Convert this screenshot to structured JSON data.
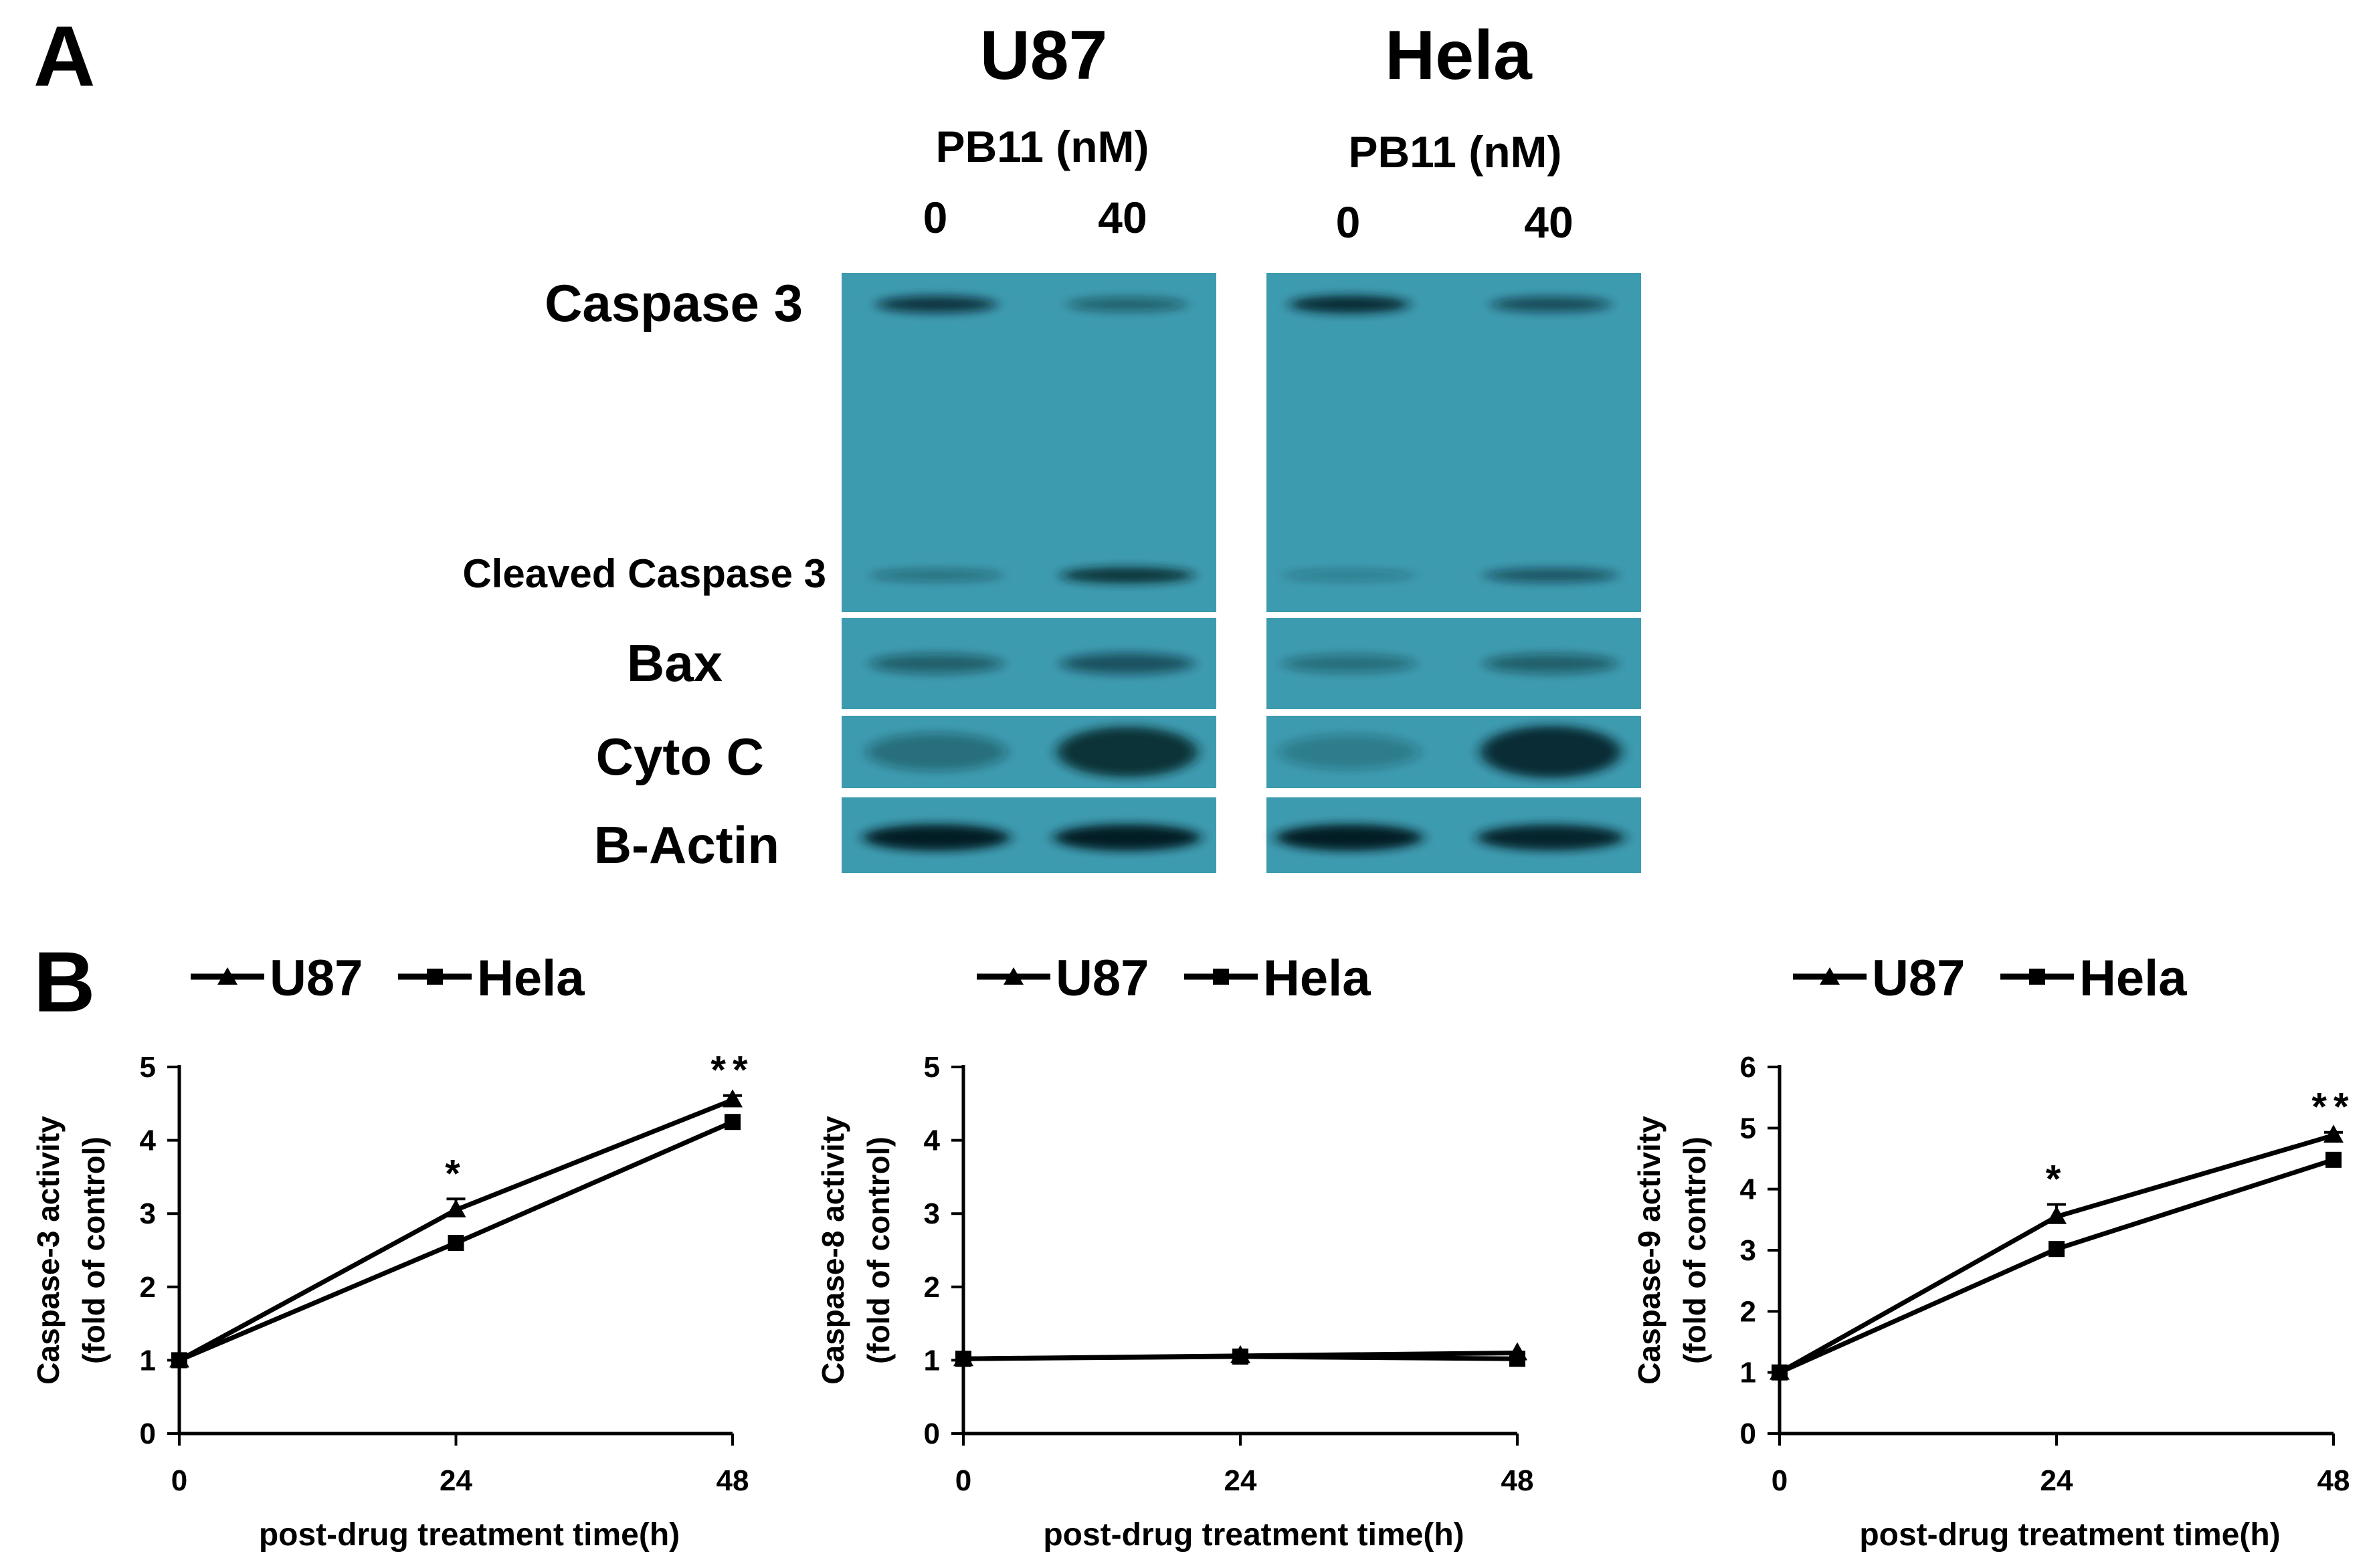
{
  "panel_a": {
    "letter": "A",
    "groups": [
      {
        "cell_line": "U87",
        "treatment_label": "PB11 (nM)",
        "lanes": [
          "0",
          "40"
        ]
      },
      {
        "cell_line": "Hela",
        "treatment_label": "PB11 (nM)",
        "lanes": [
          "0",
          "40"
        ]
      }
    ],
    "blot_labels": {
      "caspase3": "Caspase 3",
      "cleaved": "Cleaved Caspase 3",
      "bax": "Bax",
      "cytoc": "Cyto C",
      "actin": "B-Actin"
    },
    "band_intensity": {
      "U87": {
        "caspase3": [
          0.75,
          0.45
        ],
        "cleaved": [
          0.35,
          0.8
        ],
        "bax": [
          0.45,
          0.55
        ],
        "cytoc": [
          0.35,
          0.8
        ],
        "actin": [
          0.95,
          0.95
        ]
      },
      "Hela": {
        "caspase3": [
          0.85,
          0.6
        ],
        "cleaved": [
          0.25,
          0.55
        ],
        "bax": [
          0.35,
          0.45
        ],
        "cytoc": [
          0.25,
          0.85
        ],
        "actin": [
          0.95,
          0.9
        ]
      }
    },
    "membrane_color": "#3d9bb0"
  },
  "panel_b": {
    "letter": "B",
    "legend": [
      "U87",
      "Hela"
    ],
    "xlabel": "post-drug treatment time(h)"
  },
  "chart_data": [
    {
      "type": "line",
      "x": [
        0,
        24,
        48
      ],
      "xlabel": "post-drug treatment time(h)",
      "ylabel": [
        "Caspase-3 activity",
        "(fold of control)"
      ],
      "ylim": [
        0,
        5
      ],
      "yticks": [
        0,
        1,
        2,
        3,
        4,
        5
      ],
      "series": [
        {
          "name": "U87",
          "marker": "triangle",
          "values": [
            1.0,
            3.05,
            4.55
          ],
          "error": [
            0,
            0.15,
            0.06
          ]
        },
        {
          "name": "Hela",
          "marker": "square",
          "values": [
            1.0,
            2.6,
            4.25
          ],
          "error": [
            0,
            0,
            0
          ]
        }
      ],
      "annotations": [
        {
          "x": 24,
          "text": "*"
        },
        {
          "x": 48,
          "text": "**"
        }
      ]
    },
    {
      "type": "line",
      "x": [
        0,
        24,
        48
      ],
      "xlabel": "post-drug treatment time(h)",
      "ylabel": [
        "Caspase-8 activity",
        "(fold of control)"
      ],
      "ylim": [
        0,
        5
      ],
      "yticks": [
        0,
        1,
        2,
        3,
        4,
        5
      ],
      "series": [
        {
          "name": "U87",
          "marker": "triangle",
          "values": [
            1.02,
            1.06,
            1.1
          ],
          "error": [
            0,
            0,
            0
          ]
        },
        {
          "name": "Hela",
          "marker": "square",
          "values": [
            1.02,
            1.05,
            1.02
          ],
          "error": [
            0,
            0,
            0
          ]
        }
      ],
      "annotations": []
    },
    {
      "type": "line",
      "x": [
        0,
        24,
        48
      ],
      "xlabel": "post-drug treatment time(h)",
      "ylabel": [
        "Caspase-9 activity",
        "(fold of control)"
      ],
      "ylim": [
        0,
        6
      ],
      "yticks": [
        0,
        1,
        2,
        3,
        4,
        5,
        6
      ],
      "series": [
        {
          "name": "U87",
          "marker": "triangle",
          "values": [
            1.0,
            3.55,
            4.88
          ],
          "error": [
            0,
            0.2,
            0.05
          ]
        },
        {
          "name": "Hela",
          "marker": "square",
          "values": [
            1.0,
            3.02,
            4.48
          ],
          "error": [
            0,
            0,
            0
          ]
        }
      ],
      "annotations": [
        {
          "x": 24,
          "text": "*"
        },
        {
          "x": 48,
          "text": "**"
        }
      ]
    }
  ]
}
